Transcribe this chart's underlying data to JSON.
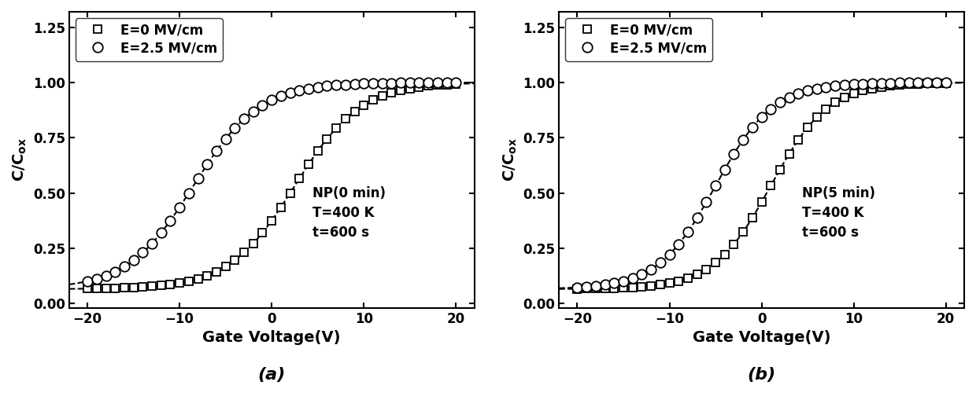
{
  "figure_width": 12.4,
  "figure_height": 5.23,
  "dpi": 100,
  "background_color": "#ffffff",
  "panels": [
    {
      "label": "(a)",
      "annotation": "NP(0 min)\nT=400 K\nt=600 s",
      "xlabel": "Gate Voltage(V)",
      "ylabel": "C/C$_{ox}$",
      "xlim": [
        -22,
        22
      ],
      "ylim": [
        -0.02,
        1.32
      ],
      "xticks": [
        -20,
        -10,
        0,
        10,
        20
      ],
      "yticks": [
        0.0,
        0.25,
        0.5,
        0.75,
        1.0,
        1.25
      ],
      "series": [
        {
          "label": "E=0 MV/cm",
          "marker": "s",
          "vth": 2.5,
          "k": 0.28,
          "c_min": 0.065,
          "c_max": 1.0
        },
        {
          "label": "E=2.5 MV/cm",
          "marker": "o",
          "vth": -8.5,
          "k": 0.28,
          "c_min": 0.065,
          "c_max": 1.0
        }
      ]
    },
    {
      "label": "(b)",
      "annotation": "NP(5 min)\nT=400 K\nt=600 s",
      "xlabel": "Gate Voltage(V)",
      "ylabel": "C/C$_{ox}$",
      "xlim": [
        -22,
        22
      ],
      "ylim": [
        -0.02,
        1.32
      ],
      "xticks": [
        -20,
        -10,
        0,
        10,
        20
      ],
      "yticks": [
        0.0,
        0.25,
        0.5,
        0.75,
        1.0,
        1.25
      ],
      "series": [
        {
          "label": "E=0 MV/cm",
          "marker": "s",
          "vth": 1.0,
          "k": 0.32,
          "c_min": 0.065,
          "c_max": 1.0
        },
        {
          "label": "E=2.5 MV/cm",
          "marker": "o",
          "vth": -5.0,
          "k": 0.32,
          "c_min": 0.065,
          "c_max": 1.0
        }
      ]
    }
  ],
  "marker_size_sq": 7,
  "marker_size_ci": 9,
  "line_width": 1.5,
  "font_size_label": 14,
  "font_size_tick": 12,
  "font_size_legend": 12,
  "font_size_annotation": 12,
  "font_size_panel_label": 16
}
